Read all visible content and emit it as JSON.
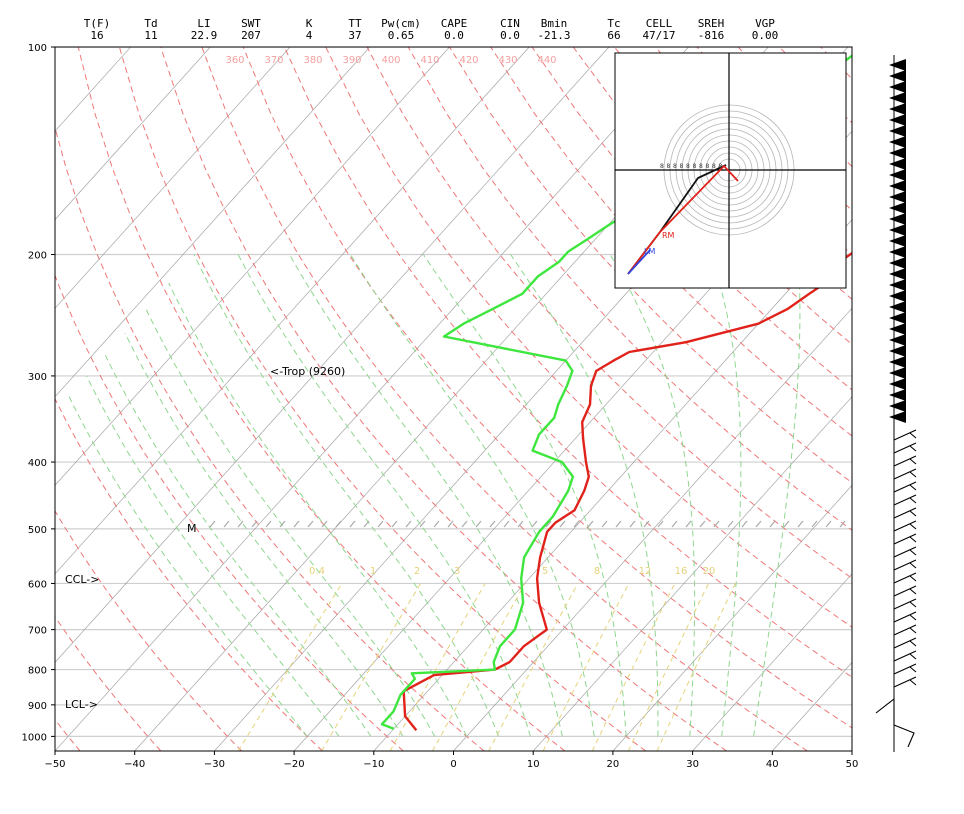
{
  "indices": [
    {
      "label": "T(F)",
      "value": "16"
    },
    {
      "label": "Td",
      "value": "11"
    },
    {
      "label": "LI",
      "value": "22.9"
    },
    {
      "label": "SWT",
      "value": "207"
    },
    {
      "label": "K",
      "value": "4"
    },
    {
      "label": "TT",
      "value": "37"
    },
    {
      "label": "Pw(cm)",
      "value": "0.65"
    },
    {
      "label": "CAPE",
      "value": "0.0"
    },
    {
      "label": "CIN",
      "value": "0.0"
    },
    {
      "label": "Bmin",
      "value": "-21.3"
    },
    {
      "label": "Tc",
      "value": "66"
    },
    {
      "label": "CELL",
      "value": "47/17"
    },
    {
      "label": "SREH",
      "value": "-816"
    },
    {
      "label": "VGP",
      "value": "0.00"
    }
  ],
  "annotations": {
    "trop": "<-Trop (9260)",
    "ccl": "CCL->",
    "lcl": "LCL->",
    "m_marker": "M",
    "hodo_rm": "RM",
    "hodo_lm": "LM"
  },
  "colors": {
    "temperature": "#e0221a",
    "dewpoint": "#3ee63e",
    "dry_adiabat": "#ee7777",
    "moist_adiabat": "#8fd68f",
    "mixing_ratio": "#e6d27a",
    "isotherm": "#888888"
  },
  "chart_data": {
    "type": "line",
    "title": "",
    "xlabel": "",
    "ylabel": "",
    "x_ticks": [
      -50,
      -40,
      -30,
      -20,
      -10,
      0,
      10,
      20,
      30,
      40,
      50
    ],
    "y_ticks": [
      100,
      200,
      300,
      400,
      500,
      600,
      700,
      800,
      900,
      1000
    ],
    "xlim": [
      -50,
      50
    ],
    "ylim": [
      1050,
      100
    ],
    "y_scale": "log",
    "grid": true,
    "isopleth_labels": {
      "theta": [
        "360",
        "370",
        "380",
        "390",
        "400",
        "410",
        "420",
        "430",
        "440"
      ],
      "mixing_ratio": [
        "0.4",
        "1",
        "2",
        "3",
        "5",
        "8",
        "12",
        "16",
        "20"
      ]
    },
    "series": [
      {
        "name": "",
        "color": "#e0221a",
        "points": [
          [
            -7,
            980
          ],
          [
            -10,
            935
          ],
          [
            -13,
            860
          ],
          [
            -11,
            815
          ],
          [
            -4,
            800
          ],
          [
            -3,
            780
          ],
          [
            -3,
            740
          ],
          [
            -2,
            700
          ],
          [
            -6,
            640
          ],
          [
            -9,
            590
          ],
          [
            -11,
            550
          ],
          [
            -13,
            505
          ],
          [
            -13,
            490
          ],
          [
            -12,
            470
          ],
          [
            -13,
            440
          ],
          [
            -14,
            420
          ],
          [
            -16,
            400
          ],
          [
            -19,
            370
          ],
          [
            -21,
            350
          ],
          [
            -22,
            330
          ],
          [
            -24,
            310
          ],
          [
            -25,
            295
          ],
          [
            -24,
            285
          ],
          [
            -23,
            277
          ],
          [
            -17,
            268
          ],
          [
            -10,
            252
          ],
          [
            -8,
            240
          ],
          [
            -7,
            228
          ],
          [
            -6,
            218
          ],
          [
            -7,
            207
          ],
          [
            -6,
            197
          ],
          [
            -4,
            188
          ],
          [
            -3,
            180
          ],
          [
            -2,
            172
          ],
          [
            -2,
            165
          ],
          [
            -1,
            158
          ],
          [
            1,
            150
          ],
          [
            2,
            142
          ],
          [
            2,
            135
          ],
          [
            3,
            128
          ],
          [
            4,
            122
          ],
          [
            4,
            118
          ],
          [
            4,
            112
          ],
          [
            5,
            106
          ],
          [
            6,
            100
          ]
        ]
      },
      {
        "name": "",
        "color": "#3ee63e",
        "points": [
          [
            -10,
            975
          ],
          [
            -12,
            960
          ],
          [
            -12,
            920
          ],
          [
            -13,
            870
          ],
          [
            -13,
            825
          ],
          [
            -14,
            810
          ],
          [
            -4,
            800
          ],
          [
            -5,
            780
          ],
          [
            -6,
            740
          ],
          [
            -6,
            700
          ],
          [
            -8,
            640
          ],
          [
            -11,
            590
          ],
          [
            -13,
            550
          ],
          [
            -14,
            505
          ],
          [
            -14,
            480
          ],
          [
            -15,
            440
          ],
          [
            -16,
            420
          ],
          [
            -19,
            400
          ],
          [
            -24,
            385
          ],
          [
            -25,
            365
          ],
          [
            -25,
            345
          ],
          [
            -26,
            330
          ],
          [
            -27,
            310
          ],
          [
            -28,
            295
          ],
          [
            -30,
            285
          ],
          [
            -48,
            263
          ],
          [
            -47,
            252
          ],
          [
            -45,
            240
          ],
          [
            -43,
            228
          ],
          [
            -43,
            215
          ],
          [
            -42,
            205
          ],
          [
            -42,
            198
          ],
          [
            -41,
            190
          ],
          [
            -40,
            182
          ],
          [
            -39,
            175
          ],
          [
            -38,
            168
          ],
          [
            -37,
            162
          ],
          [
            -35,
            155
          ],
          [
            -34,
            148
          ],
          [
            -33,
            140
          ],
          [
            -33,
            132
          ],
          [
            -31,
            125
          ],
          [
            -31,
            118
          ],
          [
            -30,
            112
          ],
          [
            -29,
            106
          ],
          [
            -28,
            100
          ]
        ]
      }
    ]
  }
}
